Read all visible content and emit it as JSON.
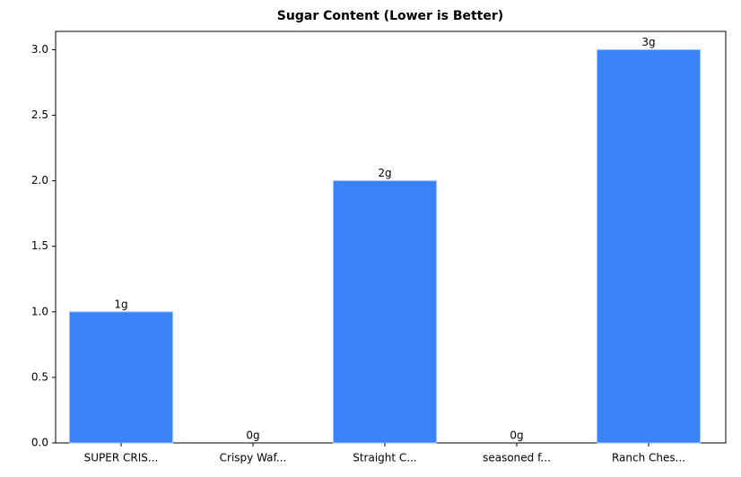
{
  "chart_data": {
    "type": "bar",
    "title": "Sugar Content (Lower is Better)",
    "categories": [
      "SUPER CRIS...",
      "Crispy Waf...",
      "Straight C...",
      "seasoned f...",
      "Ranch Ches..."
    ],
    "values": [
      1,
      0,
      2,
      0,
      3
    ],
    "value_labels": [
      "1g",
      "0g",
      "2g",
      "0g",
      "3g"
    ],
    "color": "#3b82f6",
    "ylim": [
      0,
      3.14
    ],
    "yticks": [
      {
        "value": 0,
        "label": "0.0"
      },
      0.5,
      {
        "value": 1,
        "label": "1.0"
      },
      1.5,
      {
        "value": 2,
        "label": "2.0"
      },
      2.5,
      {
        "value": 3,
        "label": "3.0"
      }
    ]
  }
}
